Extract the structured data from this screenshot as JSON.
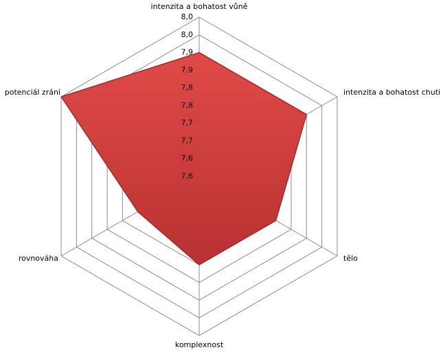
{
  "chart_data": {
    "type": "radar",
    "categories": [
      "intenzita a bohatost  vůně",
      "intenzita a bohatost  chuti",
      "tělo",
      "komplexnost",
      "rovnováha",
      "potenciál zrání"
    ],
    "values": [
      7.9,
      7.9,
      7.8,
      7.8,
      7.75,
      8.0
    ],
    "color": "#d9403f",
    "ylim": [
      7.55,
      8.0
    ],
    "yticks": [
      {
        "value": 7.55,
        "label": "7,6"
      },
      {
        "value": 7.6,
        "label": "7,6"
      },
      {
        "value": 7.65,
        "label": "7,7"
      },
      {
        "value": 7.7,
        "label": "7,7"
      },
      {
        "value": 7.75,
        "label": "7,8"
      },
      {
        "value": 7.8,
        "label": "7,8"
      },
      {
        "value": 7.85,
        "label": "7,9"
      },
      {
        "value": 7.9,
        "label": "7,9"
      },
      {
        "value": 7.95,
        "label": "8,0"
      },
      {
        "value": 8.0,
        "label": "8,0"
      }
    ],
    "grid": true
  }
}
